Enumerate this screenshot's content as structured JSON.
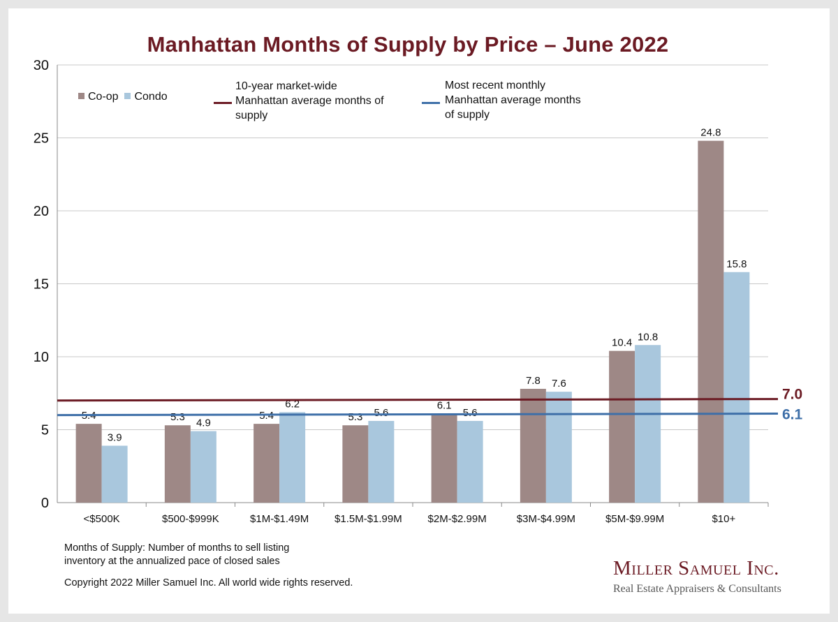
{
  "chart_data": {
    "type": "bar",
    "title": "Manhattan Months of Supply by Price – June 2022",
    "categories": [
      "<$500K",
      "$500-$999K",
      "$1M-$1.49M",
      "$1.5M-$1.99M",
      "$2M-$2.99M",
      "$3M-$4.99M",
      "$5M-$9.99M",
      "$10+"
    ],
    "series": [
      {
        "name": "Co-op",
        "color": "#9e8886",
        "values": [
          5.4,
          5.3,
          5.4,
          5.3,
          6.1,
          7.8,
          10.4,
          24.8
        ]
      },
      {
        "name": "Condo",
        "color": "#a9c7dd",
        "values": [
          3.9,
          4.9,
          6.2,
          5.6,
          5.6,
          7.6,
          10.8,
          15.8
        ]
      }
    ],
    "ylim": [
      0,
      30
    ],
    "yticks": [
      0,
      5,
      10,
      15,
      20,
      25,
      30
    ],
    "grid": true,
    "legend": "top-left",
    "reference_lines": [
      {
        "label": "10-year market-wide Manhattan average months of supply",
        "start": 7.0,
        "end": 7.1,
        "value_label": "7.0",
        "color": "#6b1a23"
      },
      {
        "label": "Most recent monthly Manhattan average months of supply",
        "start": 6.0,
        "end": 6.1,
        "value_label": "6.1",
        "color": "#3e6fa8"
      }
    ]
  },
  "legend_text": {
    "coop": "Co-op",
    "condo": "Condo",
    "ref1": [
      "10-year market-wide",
      "Manhattan average months of",
      "supply"
    ],
    "ref2": [
      "Most recent monthly",
      "Manhattan average months",
      "of supply"
    ]
  },
  "footnote": {
    "line1": "Months of Supply: Number of months to sell listing",
    "line2": "inventory at the annualized pace of closed sales",
    "copyright": "Copyright 2022 Miller Samuel Inc.  All world wide rights reserved."
  },
  "logo": {
    "name": "Miller Samuel Inc.",
    "tagline": "Real Estate Appraisers & Consultants"
  }
}
